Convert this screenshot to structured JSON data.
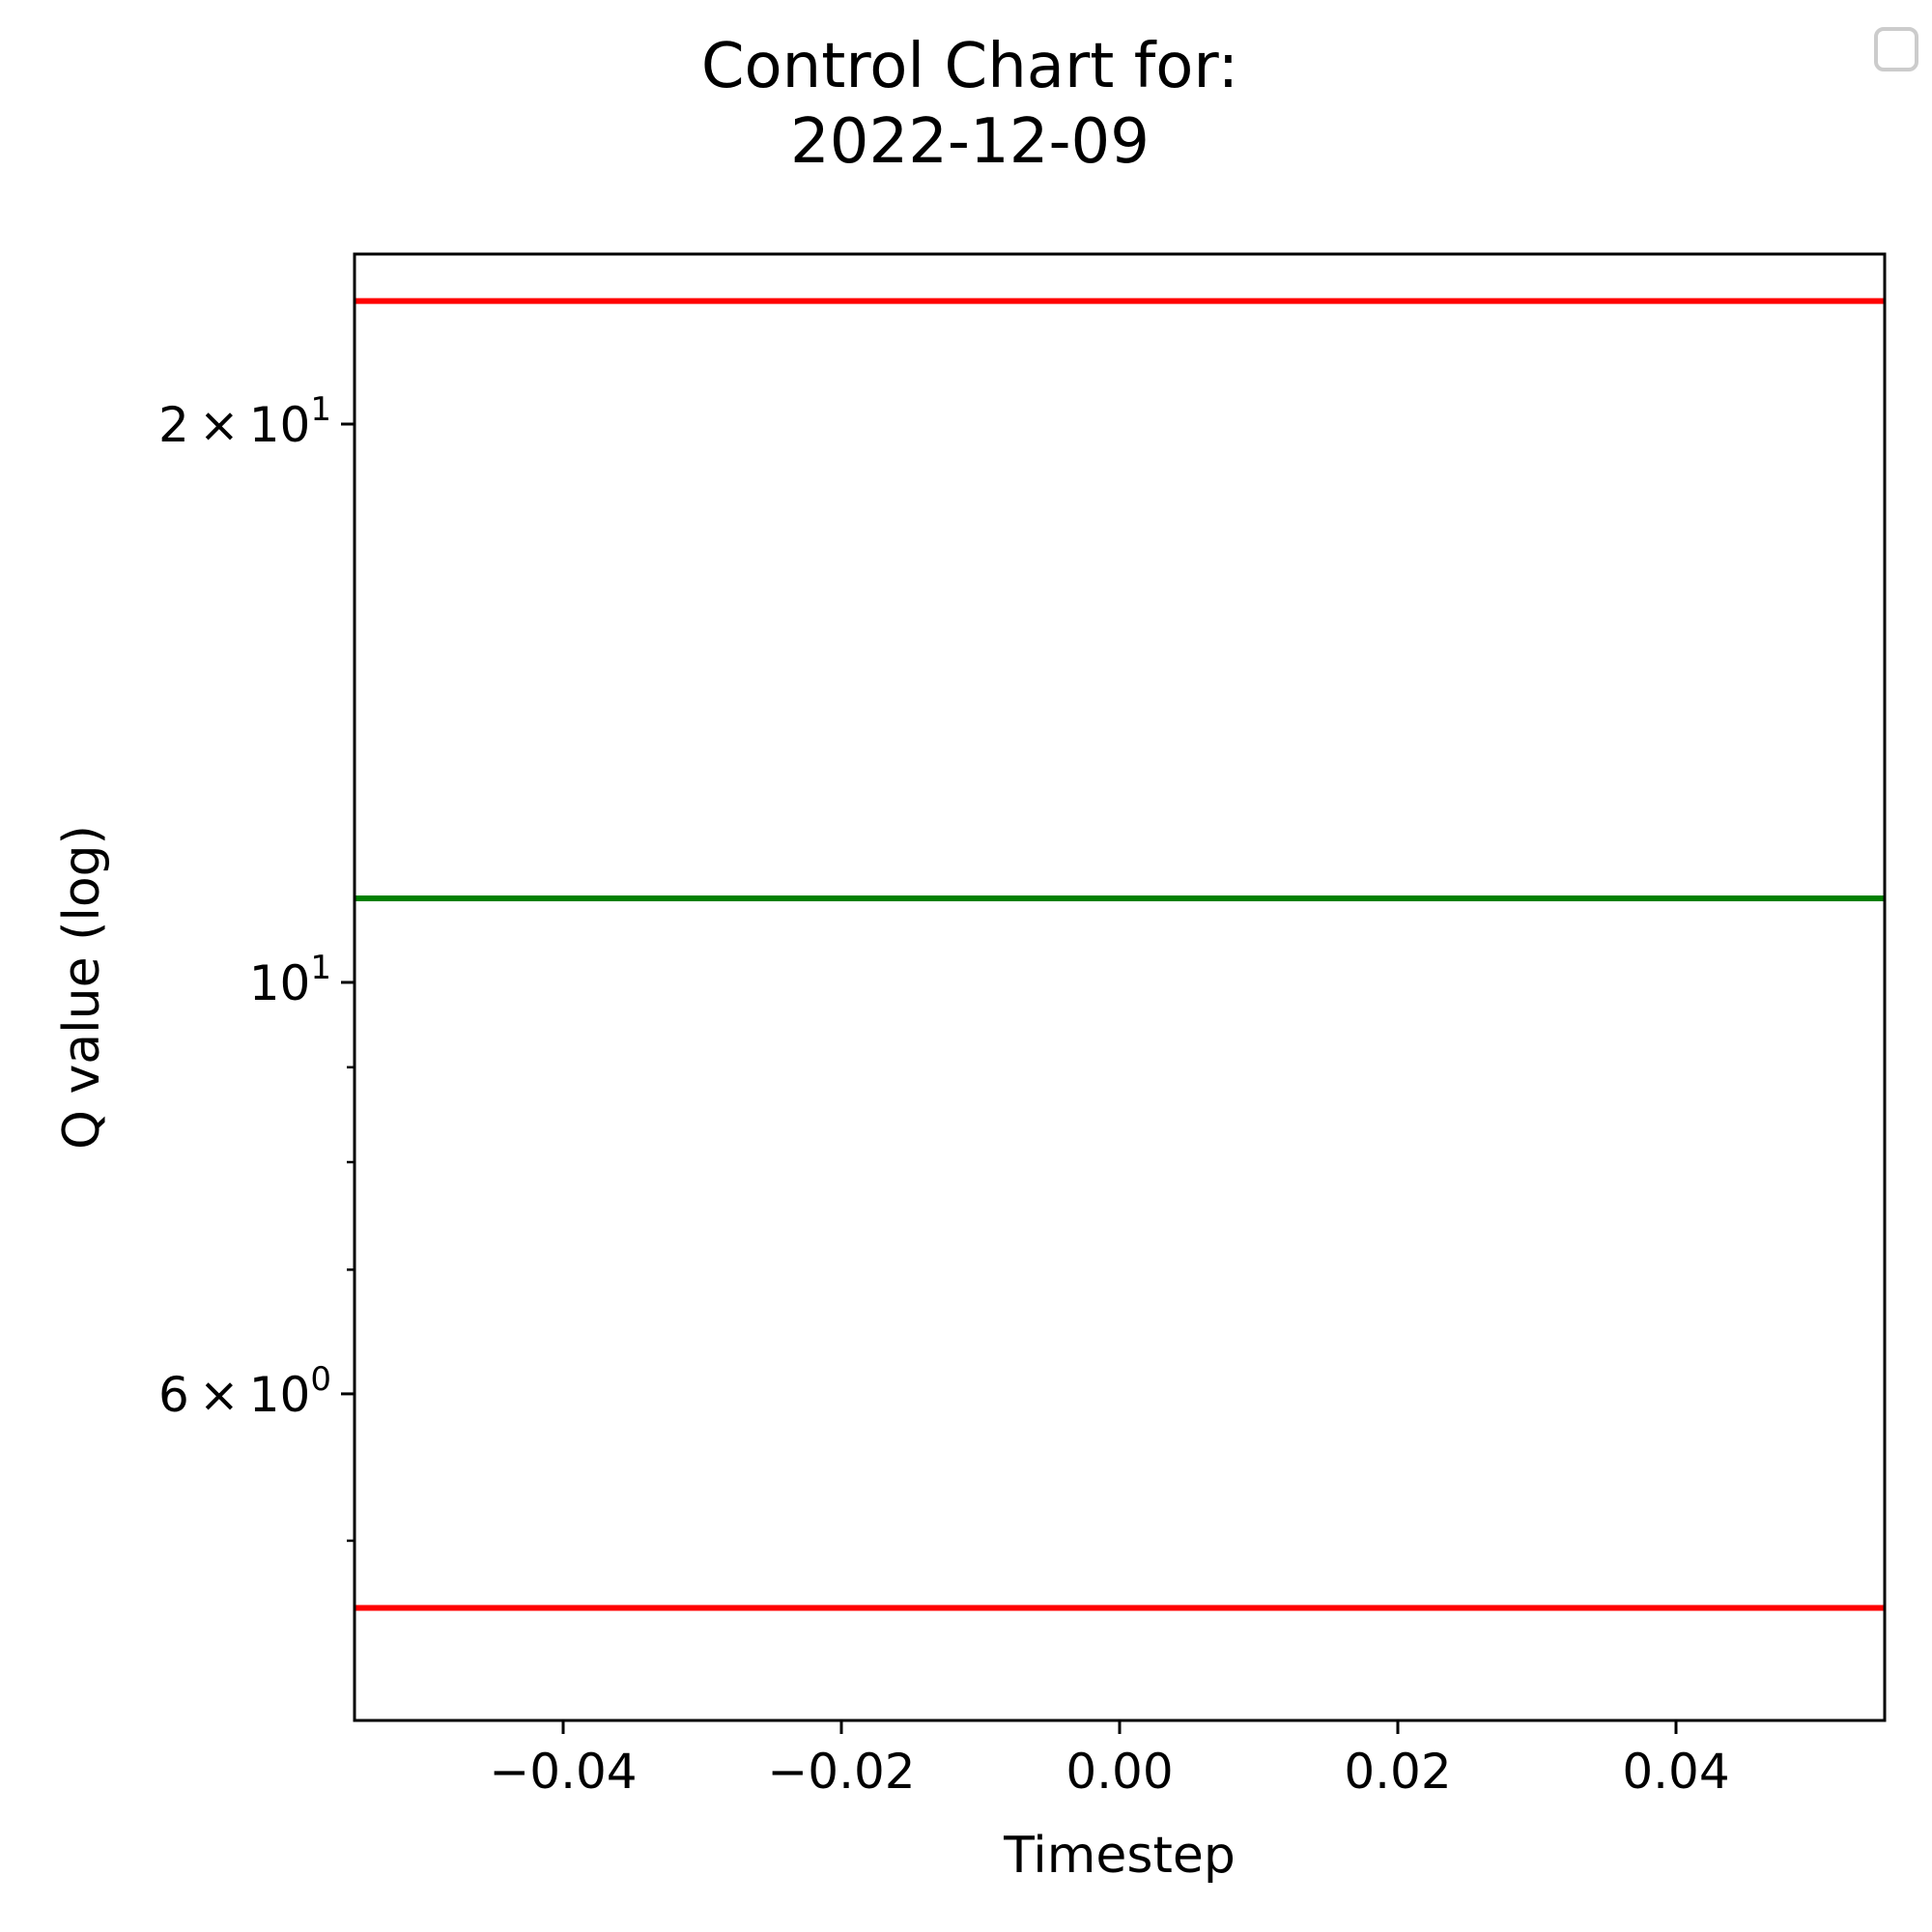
{
  "chart_data": {
    "type": "line",
    "title_lines": [
      "Control Chart for:",
      "2022-12-09"
    ],
    "xlabel": "Timestep",
    "ylabel": "Q value (log)",
    "yscale": "log",
    "xlim": [
      -0.055,
      0.055
    ],
    "ylim": [
      4.0,
      24.7
    ],
    "x_ticks": [
      {
        "value": -0.04,
        "label": "−0.04"
      },
      {
        "value": -0.02,
        "label": "−0.02"
      },
      {
        "value": 0.0,
        "label": "0.00"
      },
      {
        "value": 0.02,
        "label": "0.02"
      },
      {
        "value": 0.04,
        "label": "0.04"
      }
    ],
    "y_major_ticks": [
      {
        "value": 20,
        "base": "2 × 10",
        "exp": "1"
      },
      {
        "value": 10,
        "base": "10",
        "exp": "1"
      },
      {
        "value": 6,
        "base": "6 × 10",
        "exp": "0"
      }
    ],
    "y_minor_ticks": [
      5,
      7,
      8,
      9
    ],
    "hlines": [
      {
        "role": "upper-control-limit",
        "value": 23.3,
        "color": "#ff0000"
      },
      {
        "role": "center-line",
        "value": 11.1,
        "color": "#008000"
      },
      {
        "role": "lower-control-limit",
        "value": 4.6,
        "color": "#ff0000"
      }
    ],
    "grid": false,
    "legend": {
      "position": "top-right",
      "entries": []
    }
  }
}
